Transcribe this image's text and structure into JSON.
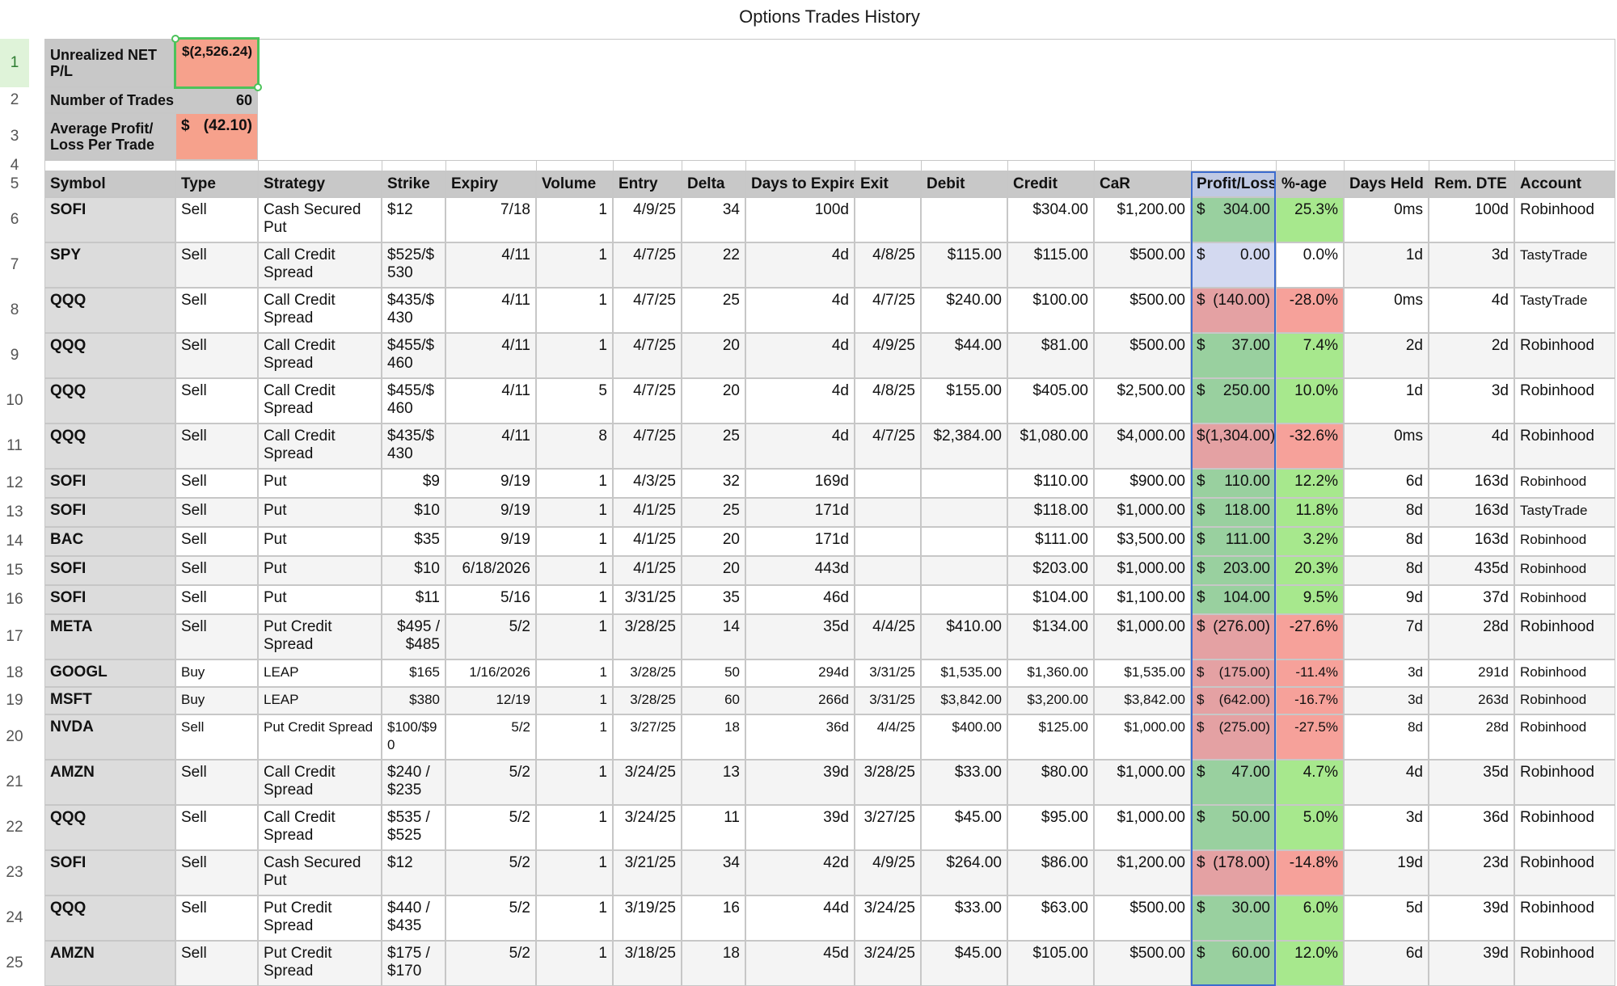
{
  "title": "Options Trades History",
  "summary": {
    "unrealized_label": "Unrealized NET P/L",
    "unrealized_value": "$(2,526.24)",
    "trades_label": "Number of Trades",
    "trades_value": "60",
    "avg_label": "Average Profit/ Loss Per Trade",
    "avg_currency": "$",
    "avg_value": "(42.10)"
  },
  "row_numbers": [
    "1",
    "2",
    "3",
    "4",
    "5",
    "6",
    "7",
    "8",
    "9",
    "10",
    "11",
    "12",
    "13",
    "14",
    "15",
    "16",
    "17",
    "18",
    "19",
    "20",
    "21",
    "22",
    "23",
    "24",
    "25"
  ],
  "columns": [
    "Symbol",
    "Type",
    "Strategy",
    "Strike",
    "Expiry",
    "Volume",
    "Entry",
    "Delta",
    "Days to Expire",
    "Exit",
    "Debit",
    "Credit",
    "CaR",
    "Profit/Loss",
    "%-age",
    "Days Held",
    "Rem. DTE",
    "Account"
  ],
  "colors": {
    "profit_green": "#99d09f",
    "loss_red": "#e4a1a3",
    "pct_green": "#a7e88d",
    "pct_red": "#f6a19a",
    "header_gray": "#c8c8c8",
    "selection_green": "#4cc35a",
    "pl_column_blue": "#3c6ccf"
  },
  "trades": [
    {
      "symbol": "SOFI",
      "type": "Sell",
      "strategy": "Cash Secured Put",
      "strike": "$12",
      "expiry": "7/18",
      "volume": "1",
      "entry": "4/9/25",
      "delta": "34",
      "dte": "100d",
      "exit": "",
      "debit": "",
      "credit": "$304.00",
      "car": "$1,200.00",
      "pl_cur": "$",
      "pl": "304.00",
      "pct": "25.3%",
      "held": "0ms",
      "rem": "100d",
      "account": "Robinhood",
      "pl_state": "green",
      "pct_state": "green"
    },
    {
      "symbol": "SPY",
      "type": "Sell",
      "strategy": "Call Credit Spread",
      "strike": "$525/$ 530",
      "expiry": "4/11",
      "volume": "1",
      "entry": "4/7/25",
      "delta": "22",
      "dte": "4d",
      "exit": "4/8/25",
      "debit": "$115.00",
      "credit": "$115.00",
      "car": "$500.00",
      "pl_cur": "$",
      "pl": "0.00",
      "pct": "0.0%",
      "held": "1d",
      "rem": "3d",
      "account": "TastyTrade",
      "pl_state": "blue",
      "pct_state": "neutral"
    },
    {
      "symbol": "QQQ",
      "type": "Sell",
      "strategy": "Call Credit Spread",
      "strike": "$435/$ 430",
      "expiry": "4/11",
      "volume": "1",
      "entry": "4/7/25",
      "delta": "25",
      "dte": "4d",
      "exit": "4/7/25",
      "debit": "$240.00",
      "credit": "$100.00",
      "car": "$500.00",
      "pl_cur": "$",
      "pl": "(140.00)",
      "pct": "-28.0%",
      "held": "0ms",
      "rem": "4d",
      "account": "TastyTrade",
      "pl_state": "red",
      "pct_state": "red"
    },
    {
      "symbol": "QQQ",
      "type": "Sell",
      "strategy": "Call Credit Spread",
      "strike": "$455/$ 460",
      "expiry": "4/11",
      "volume": "1",
      "entry": "4/7/25",
      "delta": "20",
      "dte": "4d",
      "exit": "4/9/25",
      "debit": "$44.00",
      "credit": "$81.00",
      "car": "$500.00",
      "pl_cur": "$",
      "pl": "37.00",
      "pct": "7.4%",
      "held": "2d",
      "rem": "2d",
      "account": "Robinhood",
      "pl_state": "green",
      "pct_state": "green"
    },
    {
      "symbol": "QQQ",
      "type": "Sell",
      "strategy": "Call Credit Spread",
      "strike": "$455/$ 460",
      "expiry": "4/11",
      "volume": "5",
      "entry": "4/7/25",
      "delta": "20",
      "dte": "4d",
      "exit": "4/8/25",
      "debit": "$155.00",
      "credit": "$405.00",
      "car": "$2,500.00",
      "pl_cur": "$",
      "pl": "250.00",
      "pct": "10.0%",
      "held": "1d",
      "rem": "3d",
      "account": "Robinhood",
      "pl_state": "green",
      "pct_state": "green"
    },
    {
      "symbol": "QQQ",
      "type": "Sell",
      "strategy": "Call Credit Spread",
      "strike": "$435/$ 430",
      "expiry": "4/11",
      "volume": "8",
      "entry": "4/7/25",
      "delta": "25",
      "dte": "4d",
      "exit": "4/7/25",
      "debit": "$2,384.00",
      "credit": "$1,080.00",
      "car": "$4,000.00",
      "pl_cur": "$",
      "pl": "(1,304.00)",
      "pct": "-32.6%",
      "held": "0ms",
      "rem": "4d",
      "account": "Robinhood",
      "pl_state": "red",
      "pct_state": "red"
    },
    {
      "symbol": "SOFI",
      "type": "Sell",
      "strategy": "Put",
      "strike": "$9",
      "expiry": "9/19",
      "volume": "1",
      "entry": "4/3/25",
      "delta": "32",
      "dte": "169d",
      "exit": "",
      "debit": "",
      "credit": "$110.00",
      "car": "$900.00",
      "pl_cur": "$",
      "pl": "110.00",
      "pct": "12.2%",
      "held": "6d",
      "rem": "163d",
      "account": "Robinhood",
      "pl_state": "green",
      "pct_state": "green"
    },
    {
      "symbol": "SOFI",
      "type": "Sell",
      "strategy": "Put",
      "strike": "$10",
      "expiry": "9/19",
      "volume": "1",
      "entry": "4/1/25",
      "delta": "25",
      "dte": "171d",
      "exit": "",
      "debit": "",
      "credit": "$118.00",
      "car": "$1,000.00",
      "pl_cur": "$",
      "pl": "118.00",
      "pct": "11.8%",
      "held": "8d",
      "rem": "163d",
      "account": "TastyTrade",
      "pl_state": "green",
      "pct_state": "green"
    },
    {
      "symbol": "BAC",
      "type": "Sell",
      "strategy": "Put",
      "strike": "$35",
      "expiry": "9/19",
      "volume": "1",
      "entry": "4/1/25",
      "delta": "20",
      "dte": "171d",
      "exit": "",
      "debit": "",
      "credit": "$111.00",
      "car": "$3,500.00",
      "pl_cur": "$",
      "pl": "111.00",
      "pct": "3.2%",
      "held": "8d",
      "rem": "163d",
      "account": "Robinhood",
      "pl_state": "green",
      "pct_state": "green"
    },
    {
      "symbol": "SOFI",
      "type": "Sell",
      "strategy": "Put",
      "strike": "$10",
      "expiry": "6/18/2026",
      "volume": "1",
      "entry": "4/1/25",
      "delta": "20",
      "dte": "443d",
      "exit": "",
      "debit": "",
      "credit": "$203.00",
      "car": "$1,000.00",
      "pl_cur": "$",
      "pl": "203.00",
      "pct": "20.3%",
      "held": "8d",
      "rem": "435d",
      "account": "Robinhood",
      "pl_state": "green",
      "pct_state": "green"
    },
    {
      "symbol": "SOFI",
      "type": "Sell",
      "strategy": "Put",
      "strike": "$11",
      "expiry": "5/16",
      "volume": "1",
      "entry": "3/31/25",
      "delta": "35",
      "dte": "46d",
      "exit": "",
      "debit": "",
      "credit": "$104.00",
      "car": "$1,100.00",
      "pl_cur": "$",
      "pl": "104.00",
      "pct": "9.5%",
      "held": "9d",
      "rem": "37d",
      "account": "Robinhood",
      "pl_state": "green",
      "pct_state": "green"
    },
    {
      "symbol": "META",
      "type": "Sell",
      "strategy": "Put Credit Spread",
      "strike": "$495 / $485",
      "expiry": "5/2",
      "volume": "1",
      "entry": "3/28/25",
      "delta": "14",
      "dte": "35d",
      "exit": "4/4/25",
      "debit": "$410.00",
      "credit": "$134.00",
      "car": "$1,000.00",
      "pl_cur": "$",
      "pl": "(276.00)",
      "pct": "-27.6%",
      "held": "7d",
      "rem": "28d",
      "account": "Robinhood",
      "pl_state": "red",
      "pct_state": "red"
    },
    {
      "symbol": "GOOGL",
      "type": "Buy",
      "strategy": "LEAP",
      "strike": "$165",
      "expiry": "1/16/2026",
      "volume": "1",
      "entry": "3/28/25",
      "delta": "50",
      "dte": "294d",
      "exit": "3/31/25",
      "debit": "$1,535.00",
      "credit": "$1,360.00",
      "car": "$1,535.00",
      "pl_cur": "$",
      "pl": "(175.00)",
      "pct": "-11.4%",
      "held": "3d",
      "rem": "291d",
      "account": "Robinhood",
      "pl_state": "red",
      "pct_state": "red"
    },
    {
      "symbol": "MSFT",
      "type": "Buy",
      "strategy": "LEAP",
      "strike": "$380",
      "expiry": "12/19",
      "volume": "1",
      "entry": "3/28/25",
      "delta": "60",
      "dte": "266d",
      "exit": "3/31/25",
      "debit": "$3,842.00",
      "credit": "$3,200.00",
      "car": "$3,842.00",
      "pl_cur": "$",
      "pl": "(642.00)",
      "pct": "-16.7%",
      "held": "3d",
      "rem": "263d",
      "account": "Robinhood",
      "pl_state": "red",
      "pct_state": "red"
    },
    {
      "symbol": "NVDA",
      "type": "Sell",
      "strategy": "Put Credit Spread",
      "strike": "$100/$9 0",
      "expiry": "5/2",
      "volume": "1",
      "entry": "3/27/25",
      "delta": "18",
      "dte": "36d",
      "exit": "4/4/25",
      "debit": "$400.00",
      "credit": "$125.00",
      "car": "$1,000.00",
      "pl_cur": "$",
      "pl": "(275.00)",
      "pct": "-27.5%",
      "held": "8d",
      "rem": "28d",
      "account": "Robinhood",
      "pl_state": "red",
      "pct_state": "red"
    },
    {
      "symbol": "AMZN",
      "type": "Sell",
      "strategy": "Call Credit Spread",
      "strike": "$240 / $235",
      "expiry": "5/2",
      "volume": "1",
      "entry": "3/24/25",
      "delta": "13",
      "dte": "39d",
      "exit": "3/28/25",
      "debit": "$33.00",
      "credit": "$80.00",
      "car": "$1,000.00",
      "pl_cur": "$",
      "pl": "47.00",
      "pct": "4.7%",
      "held": "4d",
      "rem": "35d",
      "account": "Robinhood",
      "pl_state": "green",
      "pct_state": "green"
    },
    {
      "symbol": "QQQ",
      "type": "Sell",
      "strategy": "Call Credit Spread",
      "strike": "$535 / $525",
      "expiry": "5/2",
      "volume": "1",
      "entry": "3/24/25",
      "delta": "11",
      "dte": "39d",
      "exit": "3/27/25",
      "debit": "$45.00",
      "credit": "$95.00",
      "car": "$1,000.00",
      "pl_cur": "$",
      "pl": "50.00",
      "pct": "5.0%",
      "held": "3d",
      "rem": "36d",
      "account": "Robinhood",
      "pl_state": "green",
      "pct_state": "green"
    },
    {
      "symbol": "SOFI",
      "type": "Sell",
      "strategy": "Cash Secured Put",
      "strike": "$12",
      "expiry": "5/2",
      "volume": "1",
      "entry": "3/21/25",
      "delta": "34",
      "dte": "42d",
      "exit": "4/9/25",
      "debit": "$264.00",
      "credit": "$86.00",
      "car": "$1,200.00",
      "pl_cur": "$",
      "pl": "(178.00)",
      "pct": "-14.8%",
      "held": "19d",
      "rem": "23d",
      "account": "Robinhood",
      "pl_state": "red",
      "pct_state": "red"
    },
    {
      "symbol": "QQQ",
      "type": "Sell",
      "strategy": "Put Credit Spread",
      "strike": "$440 / $435",
      "expiry": "5/2",
      "volume": "1",
      "entry": "3/19/25",
      "delta": "16",
      "dte": "44d",
      "exit": "3/24/25",
      "debit": "$33.00",
      "credit": "$63.00",
      "car": "$500.00",
      "pl_cur": "$",
      "pl": "30.00",
      "pct": "6.0%",
      "held": "5d",
      "rem": "39d",
      "account": "Robinhood",
      "pl_state": "green",
      "pct_state": "green"
    },
    {
      "symbol": "AMZN",
      "type": "Sell",
      "strategy": "Put Credit Spread",
      "strike": "$175 / $170",
      "expiry": "5/2",
      "volume": "1",
      "entry": "3/18/25",
      "delta": "18",
      "dte": "45d",
      "exit": "3/24/25",
      "debit": "$45.00",
      "credit": "$105.00",
      "car": "$500.00",
      "pl_cur": "$",
      "pl": "60.00",
      "pct": "12.0%",
      "held": "6d",
      "rem": "39d",
      "account": "Robinhood",
      "pl_state": "green",
      "pct_state": "green"
    }
  ]
}
